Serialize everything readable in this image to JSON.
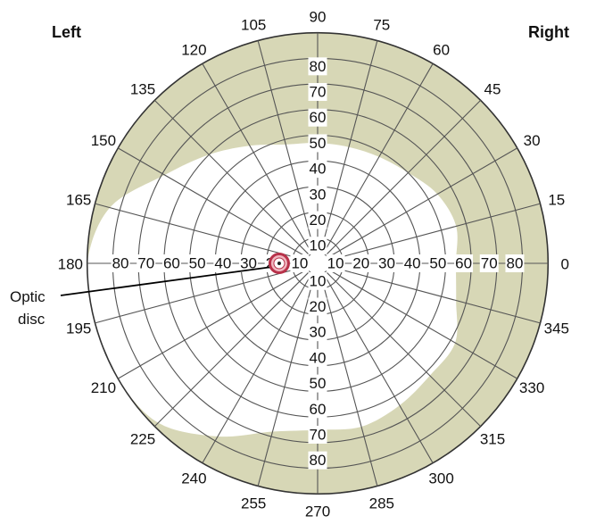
{
  "side_labels": {
    "left": "Left",
    "right": "Right"
  },
  "callout": {
    "line1": "Optic",
    "line2": "disc"
  },
  "colors": {
    "field_outside": "#d7d7b6",
    "field_inside": "#ffffff",
    "grid_line": "#555555",
    "optic_disc": "#b8324a",
    "optic_disc_fill": "#f0b7c0"
  },
  "chart_data": {
    "type": "polar",
    "ring_values": [
      10,
      20,
      30,
      40,
      50,
      60,
      70,
      80,
      90
    ],
    "ring_labels": [
      "10",
      "20",
      "30",
      "40",
      "50",
      "60",
      "70",
      "80"
    ],
    "angles": [
      0,
      15,
      30,
      45,
      60,
      75,
      90,
      105,
      120,
      135,
      150,
      165,
      180,
      195,
      210,
      225,
      240,
      255,
      270,
      285,
      300,
      315,
      330,
      345
    ],
    "angle_labels": [
      "0",
      "15",
      "30",
      "45",
      "60",
      "75",
      "90",
      "105",
      "120",
      "135",
      "150",
      "165",
      "180",
      "195",
      "210",
      "225",
      "240",
      "255",
      "270",
      "285",
      "300",
      "315",
      "330",
      "345"
    ],
    "visual_field_boundary": [
      {
        "angle": 0,
        "ecc": 54
      },
      {
        "angle": 15,
        "ecc": 56
      },
      {
        "angle": 30,
        "ecc": 54
      },
      {
        "angle": 45,
        "ecc": 50
      },
      {
        "angle": 60,
        "ecc": 48
      },
      {
        "angle": 75,
        "ecc": 47
      },
      {
        "angle": 90,
        "ecc": 47
      },
      {
        "angle": 105,
        "ecc": 48
      },
      {
        "angle": 120,
        "ecc": 53
      },
      {
        "angle": 135,
        "ecc": 60
      },
      {
        "angle": 150,
        "ecc": 69
      },
      {
        "angle": 165,
        "ecc": 84
      },
      {
        "angle": 180,
        "ecc": 90
      },
      {
        "angle": 195,
        "ecc": 90
      },
      {
        "angle": 210,
        "ecc": 90
      },
      {
        "angle": 225,
        "ecc": 88
      },
      {
        "angle": 240,
        "ecc": 78
      },
      {
        "angle": 255,
        "ecc": 68
      },
      {
        "angle": 270,
        "ecc": 65
      },
      {
        "angle": 285,
        "ecc": 66
      },
      {
        "angle": 300,
        "ecc": 64
      },
      {
        "angle": 315,
        "ecc": 62
      },
      {
        "angle": 330,
        "ecc": 62
      },
      {
        "angle": 345,
        "ecc": 56
      }
    ],
    "optic_disc": {
      "angle": 180,
      "ecc": 15
    }
  }
}
